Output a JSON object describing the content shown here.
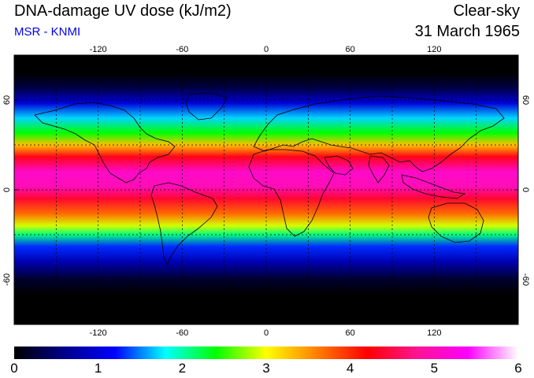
{
  "header": {
    "title": "DNA-damage UV dose (kJ/m2)",
    "credit": "MSR - KNMI",
    "condition": "Clear-sky",
    "date": "31 March 1965"
  },
  "map": {
    "lon_ticks": [
      {
        "label": "-120",
        "value": -120
      },
      {
        "label": "-60",
        "value": -60
      },
      {
        "label": "0",
        "value": 0
      },
      {
        "label": "60",
        "value": 60
      },
      {
        "label": "120",
        "value": 120
      }
    ],
    "lat_ticks": [
      {
        "label": "60",
        "value": 60
      },
      {
        "label": "0",
        "value": 0
      },
      {
        "label": "-60",
        "value": -60
      }
    ],
    "lon_range": [
      -180,
      180
    ],
    "lat_range": [
      -90,
      90
    ],
    "grid": true,
    "grid_spacing_deg": 30,
    "bands": [
      {
        "lat": 90,
        "value": 0.0
      },
      {
        "lat": 78,
        "value": 0.0
      },
      {
        "lat": 68,
        "value": 0.3
      },
      {
        "lat": 58,
        "value": 1.0
      },
      {
        "lat": 48,
        "value": 1.7
      },
      {
        "lat": 38,
        "value": 2.4
      },
      {
        "lat": 30,
        "value": 3.3
      },
      {
        "lat": 22,
        "value": 4.3
      },
      {
        "lat": 12,
        "value": 5.1
      },
      {
        "lat": 2,
        "value": 5.0
      },
      {
        "lat": -6,
        "value": 4.4
      },
      {
        "lat": -16,
        "value": 3.7
      },
      {
        "lat": -24,
        "value": 2.9
      },
      {
        "lat": -30,
        "value": 2.1
      },
      {
        "lat": -38,
        "value": 1.3
      },
      {
        "lat": -48,
        "value": 0.8
      },
      {
        "lat": -60,
        "value": 0.2
      },
      {
        "lat": -70,
        "value": 0.0
      },
      {
        "lat": -90,
        "value": 0.0
      }
    ]
  },
  "colorbar": {
    "min": 0,
    "max": 6,
    "labels": [
      "0",
      "1",
      "2",
      "3",
      "4",
      "5",
      "6"
    ],
    "stops": [
      "#000000",
      "#00008b",
      "#0000ff",
      "#00ffff",
      "#00ff00",
      "#ffff00",
      "#ff8000",
      "#ff0000",
      "#ff1493",
      "#ff00ff",
      "#ffffff"
    ]
  }
}
